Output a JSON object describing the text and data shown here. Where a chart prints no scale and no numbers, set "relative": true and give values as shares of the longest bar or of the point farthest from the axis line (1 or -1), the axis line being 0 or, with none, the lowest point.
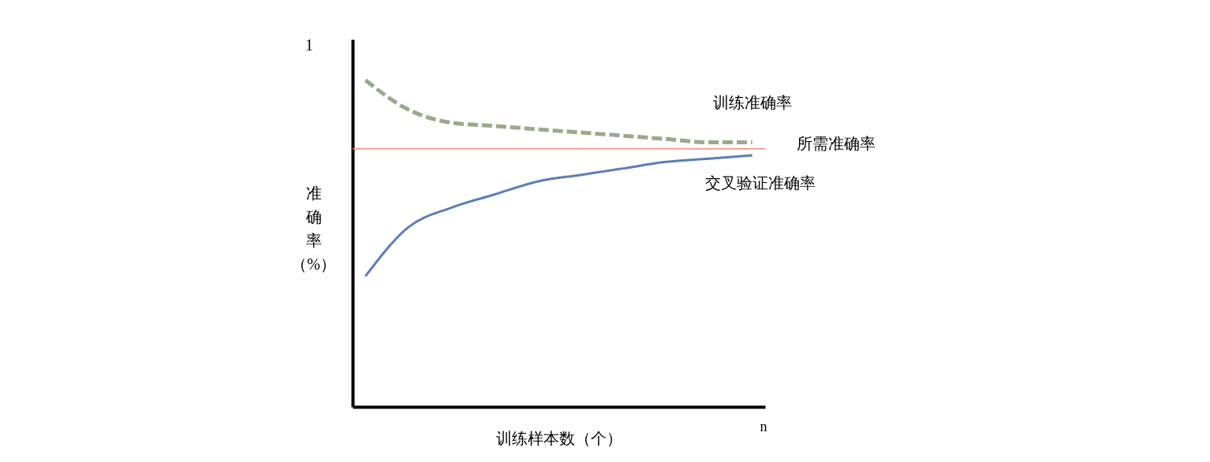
{
  "chart_data": {
    "type": "line",
    "relative": true,
    "xlabel": "训练样本数（个）",
    "ylabel": "准确率（%）",
    "categories": [
      null,
      null,
      null,
      null,
      null,
      null,
      null,
      null,
      null,
      null
    ],
    "series": [
      {
        "name": "训练准确率",
        "color": "#9aa98a",
        "line_style": "dashed",
        "values": [
          1,
          0.91,
          0.87,
          0.86,
          0.85,
          0.84,
          0.83,
          0.82,
          0.81,
          0.81
        ]
      },
      {
        "name": "交叉验证准确率",
        "color": "#5b7db8",
        "line_style": "solid",
        "values": [
          0.4,
          0.55,
          0.61,
          0.65,
          0.69,
          0.71,
          0.73,
          0.75,
          0.76,
          0.77
        ]
      }
    ],
    "ref_lines": [
      {
        "axis": "y",
        "value": 0.79,
        "label": "所需准确率",
        "color": "#f08a7a"
      }
    ],
    "annotations": [
      "1",
      "n"
    ]
  }
}
